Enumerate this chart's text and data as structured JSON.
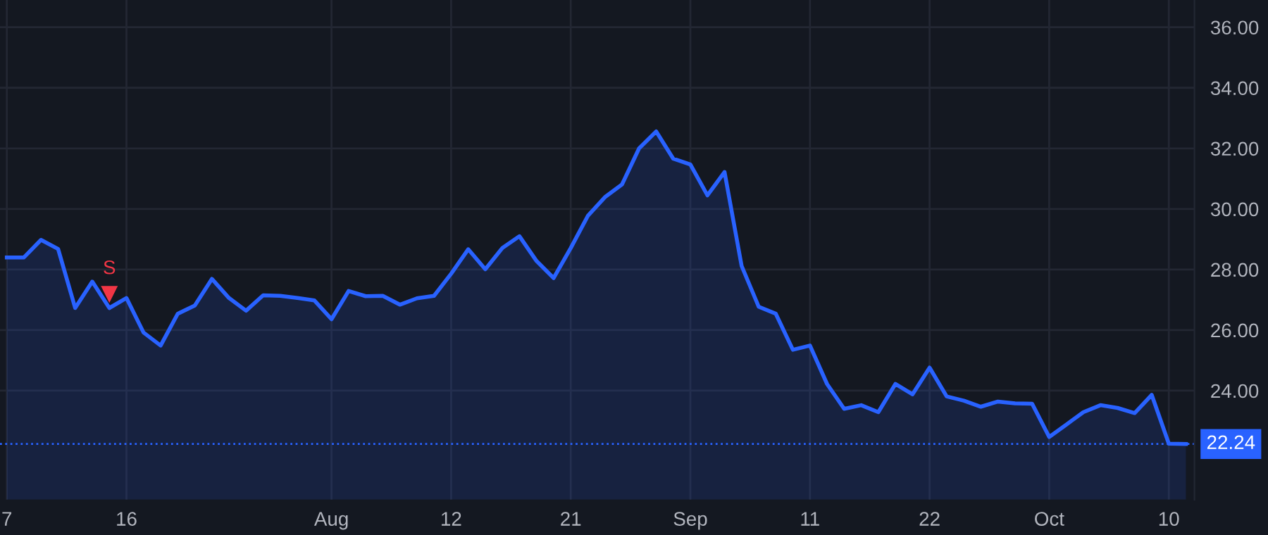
{
  "chart_data": {
    "type": "area",
    "categories": [
      "7",
      null,
      null,
      null,
      null,
      null,
      null,
      "16",
      null,
      null,
      null,
      null,
      null,
      null,
      null,
      null,
      null,
      null,
      null,
      "Aug",
      null,
      null,
      null,
      null,
      null,
      null,
      "12",
      null,
      null,
      null,
      null,
      null,
      null,
      "21",
      null,
      null,
      null,
      null,
      null,
      null,
      "Sep",
      null,
      null,
      null,
      null,
      null,
      null,
      "11",
      null,
      null,
      null,
      null,
      null,
      null,
      "22",
      null,
      null,
      null,
      null,
      null,
      null,
      "Oct",
      null,
      null,
      null,
      null,
      null,
      null,
      "10",
      null
    ],
    "series": [
      {
        "color": "#2962ff",
        "values": [
          28.4,
          28.4,
          28.98,
          28.68,
          26.73,
          27.6,
          26.73,
          27.06,
          25.92,
          25.49,
          26.54,
          26.81,
          27.69,
          27.06,
          26.64,
          27.15,
          27.13,
          27.06,
          26.98,
          26.36,
          27.29,
          27.12,
          27.13,
          26.84,
          27.05,
          27.13,
          27.86,
          28.67,
          28.01,
          28.71,
          29.1,
          28.28,
          27.72,
          28.71,
          29.77,
          30.39,
          30.81,
          32.0,
          32.56,
          31.66,
          31.47,
          30.45,
          31.22,
          28.12,
          26.77,
          26.54,
          25.35,
          25.49,
          24.22,
          23.4,
          23.52,
          23.29,
          24.22,
          23.88,
          24.76,
          23.81,
          23.67,
          23.47,
          23.64,
          23.58,
          23.57,
          22.47,
          22.88,
          23.29,
          23.52,
          23.43,
          23.26,
          23.86,
          22.25,
          22.24
        ]
      },
      {
        "type": "scatter",
        "name": "S",
        "color": "#f23645",
        "marker": "triangle",
        "values": [
          null,
          null,
          null,
          null,
          null,
          null,
          27.2,
          null,
          null,
          null,
          null,
          null,
          null,
          null,
          null,
          null,
          null,
          null,
          null,
          null,
          null,
          null,
          null,
          null,
          null,
          null,
          null,
          null,
          null,
          null,
          null,
          null,
          null,
          null,
          null,
          null,
          null,
          null,
          null,
          null,
          null,
          null,
          null,
          null,
          null,
          null,
          null,
          null,
          null,
          null,
          null,
          null,
          null,
          null,
          null,
          null,
          null,
          null,
          null,
          null,
          null,
          null,
          null,
          null,
          null,
          null,
          null,
          null,
          null,
          null
        ]
      }
    ],
    "ylim": [
      20.4,
      36.9
    ],
    "yticks": [
      {
        "value": 24,
        "label": "24.00"
      },
      {
        "value": 26,
        "label": "26.00"
      },
      {
        "value": 28,
        "label": "28.00"
      },
      {
        "value": 30,
        "label": "30.00"
      },
      {
        "value": 32,
        "label": "32.00"
      },
      {
        "value": 34,
        "label": "34.00"
      },
      {
        "value": 36,
        "label": "36.00"
      }
    ],
    "ref_lines": [
      {
        "axis": "y",
        "value": 22.24,
        "label": "22.24",
        "color": "#2962ff",
        "line_style": "dotted"
      }
    ],
    "grid": true
  }
}
